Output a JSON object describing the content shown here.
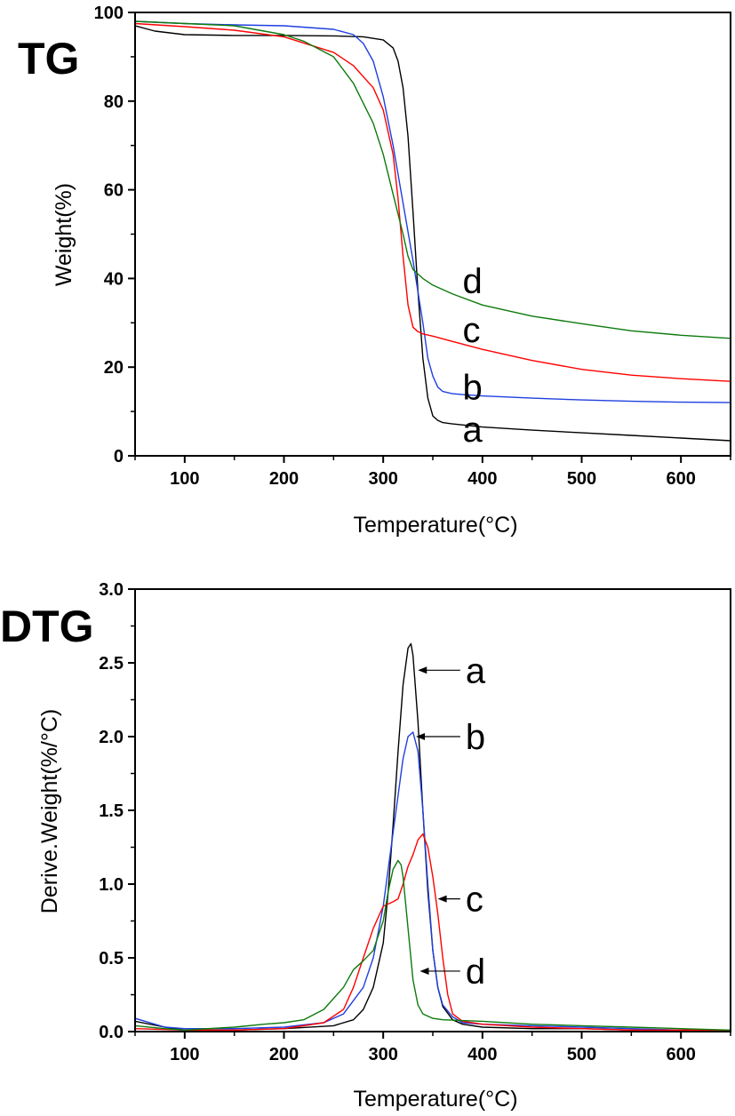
{
  "chart_data": [
    {
      "type": "line",
      "panel_label": "TG",
      "xlabel": "Temperature(°C)",
      "ylabel": "Weight(%)",
      "xlim": [
        50,
        650
      ],
      "ylim": [
        0,
        100
      ],
      "xticks": [
        100,
        200,
        300,
        400,
        500,
        600
      ],
      "yticks": [
        0,
        20,
        40,
        60,
        80,
        100
      ],
      "grid": false,
      "series": [
        {
          "name": "a",
          "color": "#000000",
          "x": [
            50,
            70,
            100,
            150,
            200,
            250,
            280,
            300,
            310,
            315,
            320,
            325,
            330,
            335,
            340,
            345,
            350,
            355,
            360,
            370,
            400,
            450,
            500,
            550,
            600,
            650
          ],
          "y": [
            97,
            95.8,
            95,
            94.8,
            94.8,
            94.7,
            94.5,
            93.8,
            92,
            89,
            83,
            72,
            55,
            37,
            22,
            13,
            9,
            8,
            7.5,
            7.2,
            6.5,
            5.8,
            5.2,
            4.6,
            4.0,
            3.4
          ]
        },
        {
          "name": "b",
          "color": "#1f3fe0",
          "x": [
            50,
            100,
            150,
            200,
            250,
            270,
            280,
            290,
            300,
            310,
            320,
            330,
            340,
            345,
            350,
            355,
            360,
            370,
            380,
            400,
            450,
            500,
            550,
            600,
            650
          ],
          "y": [
            98,
            97.5,
            97.2,
            97,
            96.2,
            95,
            93,
            89,
            81,
            70,
            57,
            44,
            30,
            22,
            18,
            15.5,
            14.5,
            14,
            13.8,
            13.5,
            13,
            12.6,
            12.3,
            12.1,
            12
          ]
        },
        {
          "name": "c",
          "color": "#ff0000",
          "x": [
            50,
            100,
            150,
            200,
            250,
            270,
            290,
            300,
            310,
            315,
            320,
            325,
            330,
            335,
            340,
            350,
            370,
            400,
            450,
            500,
            550,
            600,
            650
          ],
          "y": [
            97.5,
            96.8,
            96,
            94.5,
            91,
            88,
            83,
            78,
            68,
            58,
            45,
            34,
            29,
            28,
            27.5,
            27,
            25.8,
            24,
            21.5,
            19.5,
            18.2,
            17.4,
            16.8
          ]
        },
        {
          "name": "d",
          "color": "#0d7a0d",
          "x": [
            50,
            100,
            150,
            200,
            220,
            250,
            270,
            290,
            300,
            310,
            320,
            325,
            330,
            340,
            350,
            370,
            400,
            450,
            500,
            550,
            600,
            650
          ],
          "y": [
            98,
            97.5,
            97,
            95,
            93.5,
            90,
            84,
            75,
            68,
            59,
            50,
            45,
            42,
            40,
            38.5,
            36.5,
            34,
            31.5,
            29.8,
            28.2,
            27.2,
            26.5
          ]
        }
      ],
      "annotations": [
        {
          "text": "a",
          "x": 380,
          "y": 6
        },
        {
          "text": "b",
          "x": 380,
          "y": 15.5
        },
        {
          "text": "c",
          "x": 380,
          "y": 28.5
        },
        {
          "text": "d",
          "x": 380,
          "y": 39.5
        }
      ]
    },
    {
      "type": "line",
      "panel_label": "DTG",
      "xlabel": "Temperature(°C)",
      "ylabel": "Derive.Weight(%/°C)",
      "xlim": [
        50,
        650
      ],
      "ylim": [
        0.0,
        3.0
      ],
      "xticks": [
        100,
        200,
        300,
        400,
        500,
        600
      ],
      "yticks": [
        0.0,
        0.5,
        1.0,
        1.5,
        2.0,
        2.5,
        3.0
      ],
      "ytick_labels": [
        "0.0",
        "0.5",
        "1.0",
        "1.5",
        "2.0",
        "2.5",
        "3.0"
      ],
      "grid": false,
      "series": [
        {
          "name": "a",
          "color": "#000000",
          "x": [
            50,
            80,
            100,
            150,
            200,
            250,
            270,
            280,
            290,
            300,
            305,
            310,
            315,
            320,
            325,
            328,
            330,
            335,
            340,
            345,
            350,
            355,
            360,
            370,
            380,
            400,
            450,
            500,
            550,
            600,
            650
          ],
          "y": [
            0.07,
            0.03,
            0.01,
            0.01,
            0.02,
            0.04,
            0.08,
            0.15,
            0.3,
            0.6,
            0.95,
            1.4,
            1.9,
            2.35,
            2.6,
            2.63,
            2.55,
            2.1,
            1.5,
            0.95,
            0.55,
            0.3,
            0.17,
            0.08,
            0.05,
            0.03,
            0.02,
            0.02,
            0.01,
            0.01,
            0.01
          ]
        },
        {
          "name": "b",
          "color": "#1f3fe0",
          "x": [
            50,
            80,
            100,
            150,
            200,
            240,
            260,
            280,
            290,
            300,
            310,
            320,
            325,
            330,
            335,
            340,
            345,
            350,
            355,
            360,
            370,
            380,
            400,
            450,
            500,
            550,
            600,
            650
          ],
          "y": [
            0.09,
            0.03,
            0.02,
            0.02,
            0.03,
            0.06,
            0.12,
            0.3,
            0.5,
            0.85,
            1.35,
            1.85,
            2.0,
            2.03,
            1.9,
            1.5,
            1.0,
            0.55,
            0.3,
            0.18,
            0.1,
            0.06,
            0.05,
            0.04,
            0.03,
            0.02,
            0.01,
            0.01
          ]
        },
        {
          "name": "c",
          "color": "#ff0000",
          "x": [
            50,
            100,
            150,
            200,
            240,
            260,
            270,
            280,
            290,
            300,
            310,
            315,
            320,
            325,
            330,
            335,
            340,
            345,
            350,
            355,
            360,
            365,
            370,
            380,
            400,
            450,
            500,
            550,
            600,
            650
          ],
          "y": [
            0.02,
            0.01,
            0.01,
            0.02,
            0.06,
            0.15,
            0.3,
            0.5,
            0.7,
            0.85,
            0.88,
            0.9,
            1.0,
            1.12,
            1.2,
            1.3,
            1.34,
            1.25,
            1.05,
            0.8,
            0.5,
            0.25,
            0.12,
            0.07,
            0.05,
            0.03,
            0.02,
            0.01,
            0.01,
            0.01
          ]
        },
        {
          "name": "d",
          "color": "#0d7a0d",
          "x": [
            50,
            80,
            100,
            150,
            180,
            200,
            220,
            240,
            260,
            270,
            280,
            290,
            300,
            305,
            310,
            315,
            318,
            320,
            325,
            330,
            335,
            340,
            350,
            360,
            400,
            450,
            500,
            550,
            600,
            650
          ],
          "y": [
            0.04,
            0.02,
            0.01,
            0.03,
            0.05,
            0.06,
            0.08,
            0.15,
            0.3,
            0.42,
            0.48,
            0.55,
            0.75,
            0.95,
            1.1,
            1.16,
            1.13,
            1.05,
            0.7,
            0.35,
            0.18,
            0.12,
            0.09,
            0.08,
            0.07,
            0.05,
            0.04,
            0.03,
            0.02,
            0.01
          ]
        }
      ],
      "annotations": [
        {
          "text": "a",
          "x": 383,
          "y": 2.45,
          "arrow_to_x": 335,
          "arrow_to_y": 2.45
        },
        {
          "text": "b",
          "x": 383,
          "y": 2.0,
          "arrow_to_x": 333,
          "arrow_to_y": 2.0
        },
        {
          "text": "c",
          "x": 383,
          "y": 0.9,
          "arrow_to_x": 355,
          "arrow_to_y": 0.9
        },
        {
          "text": "d",
          "x": 383,
          "y": 0.41,
          "arrow_to_x": 337,
          "arrow_to_y": 0.41
        }
      ]
    }
  ]
}
